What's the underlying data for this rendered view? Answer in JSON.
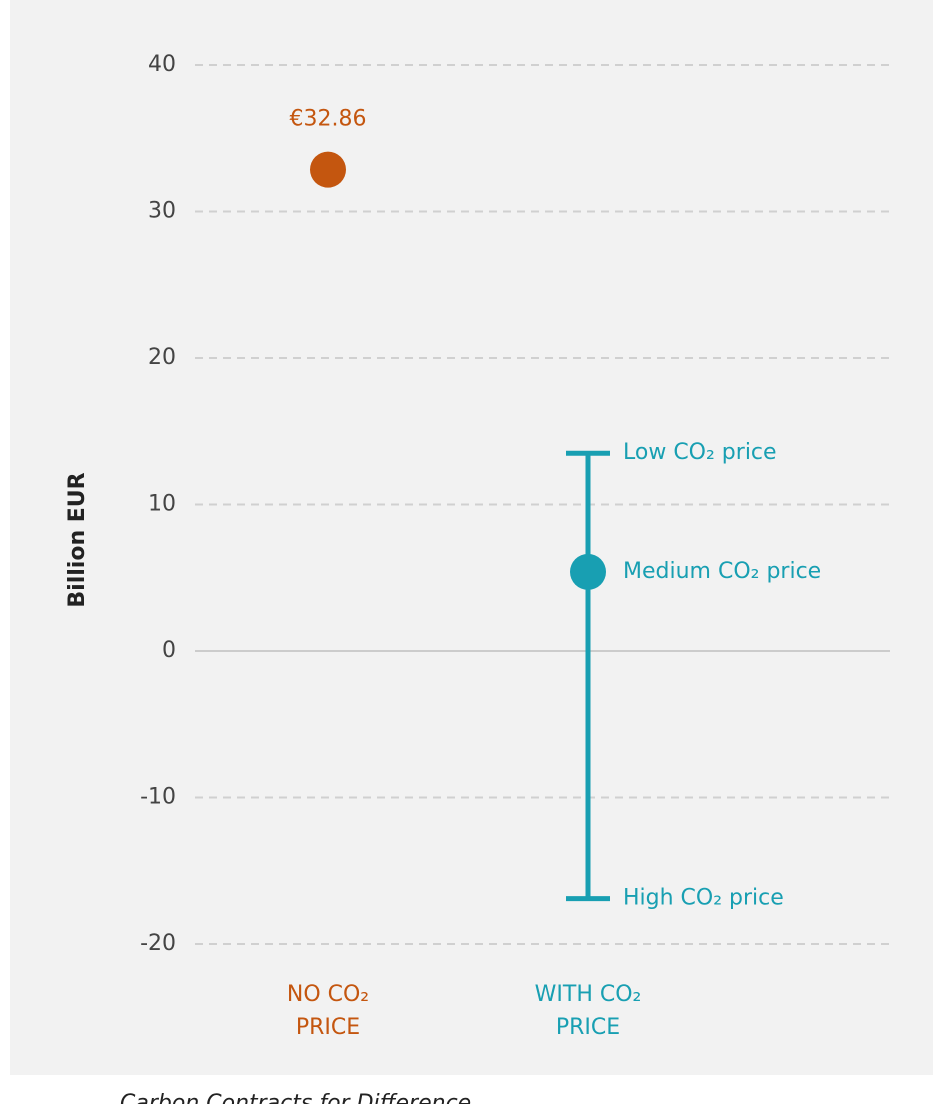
{
  "chart_data": {
    "type": "dot-range",
    "y_label": "Billion EUR",
    "ylim": [
      -20,
      40
    ],
    "yticks": [
      -20,
      -10,
      0,
      10,
      20,
      30,
      40
    ],
    "grid": true,
    "categories": [
      [
        "NO CO₂",
        "PRICE"
      ],
      [
        "WITH CO₂",
        "PRICE"
      ]
    ],
    "colors": [
      "#c4560f",
      "#189fb2"
    ],
    "values": [
      32.86,
      5.4
    ],
    "value_labels": [
      "€32.86",
      null
    ],
    "range": {
      "upper": 13.5,
      "lower": -16.9
    },
    "range_labels": {
      "upper": "Low CO₂ price",
      "middle": "Medium CO₂ price",
      "lower": "High CO₂ price"
    },
    "caption": "Carbon Contracts for Difference"
  }
}
